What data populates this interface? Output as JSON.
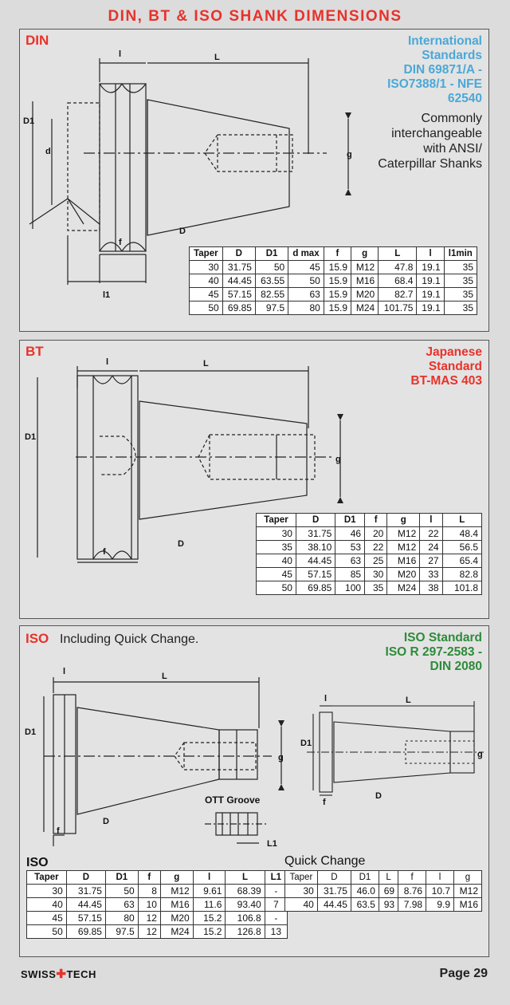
{
  "title": "DIN, BT & ISO SHANK DIMENSIONS",
  "din": {
    "label": "DIN",
    "standard_lines": [
      "International",
      "Standards",
      "DIN 69871/A -",
      "ISO7388/1 - NFE",
      "62540"
    ],
    "note_lines": [
      "Commonly",
      "interchangeable",
      "with ANSI/",
      "Caterpillar Shanks"
    ],
    "drawing_labels": {
      "l": "l",
      "L": "L",
      "D1": "D1",
      "d": "d",
      "g": "g",
      "D": "D",
      "f": "f",
      "l1": "l1"
    },
    "table": {
      "headers": [
        "Taper",
        "D",
        "D1",
        "d max",
        "f",
        "g",
        "L",
        "l",
        "l1min"
      ],
      "rows": [
        [
          "30",
          "31.75",
          "50",
          "45",
          "15.9",
          "M12",
          "47.8",
          "19.1",
          "35"
        ],
        [
          "40",
          "44.45",
          "63.55",
          "50",
          "15.9",
          "M16",
          "68.4",
          "19.1",
          "35"
        ],
        [
          "45",
          "57.15",
          "82.55",
          "63",
          "15.9",
          "M20",
          "82.7",
          "19.1",
          "35"
        ],
        [
          "50",
          "69.85",
          "97.5",
          "80",
          "15.9",
          "M24",
          "101.75",
          "19.1",
          "35"
        ]
      ]
    }
  },
  "bt": {
    "label": "BT",
    "standard_lines": [
      "Japanese",
      "Standard",
      "BT-MAS 403"
    ],
    "drawing_labels": {
      "l": "l",
      "L": "L",
      "D1": "D1",
      "g": "g",
      "D": "D",
      "f": "f"
    },
    "table": {
      "headers": [
        "Taper",
        "D",
        "D1",
        "f",
        "g",
        "l",
        "L"
      ],
      "rows": [
        [
          "30",
          "31.75",
          "46",
          "20",
          "M12",
          "22",
          "48.4"
        ],
        [
          "35",
          "38.10",
          "53",
          "22",
          "M12",
          "24",
          "56.5"
        ],
        [
          "40",
          "44.45",
          "63",
          "25",
          "M16",
          "27",
          "65.4"
        ],
        [
          "45",
          "57.15",
          "85",
          "30",
          "M20",
          "33",
          "82.8"
        ],
        [
          "50",
          "69.85",
          "100",
          "35",
          "M24",
          "38",
          "101.8"
        ]
      ]
    }
  },
  "iso": {
    "label": "ISO",
    "subtitle": "Including Quick Change.",
    "standard_lines": [
      "ISO Standard",
      "ISO R 297-2583 -",
      "DIN 2080"
    ],
    "drawing_labels": {
      "l": "l",
      "L": "L",
      "D1": "D1",
      "g": "g",
      "D": "D",
      "f": "f",
      "ott": "OTT Groove",
      "L1": "L1"
    },
    "table_caption": "ISO",
    "table": {
      "headers": [
        "Taper",
        "D",
        "D1",
        "f",
        "g",
        "l",
        "L",
        "L1"
      ],
      "rows": [
        [
          "30",
          "31.75",
          "50",
          "8",
          "M12",
          "9.61",
          "68.39",
          "-"
        ],
        [
          "40",
          "44.45",
          "63",
          "10",
          "M16",
          "11.6",
          "93.40",
          "7"
        ],
        [
          "45",
          "57.15",
          "80",
          "12",
          "M20",
          "15.2",
          "106.8",
          "-"
        ],
        [
          "50",
          "69.85",
          "97.5",
          "12",
          "M24",
          "15.2",
          "126.8",
          "13"
        ]
      ]
    },
    "qc_caption": "Quick Change",
    "qc_table": {
      "headers": [
        "Taper",
        "D",
        "D1",
        "L",
        "f",
        "l",
        "g"
      ],
      "rows": [
        [
          "30",
          "31.75",
          "46.0",
          "69",
          "8.76",
          "10.7",
          "M12"
        ],
        [
          "40",
          "44.45",
          "63.5",
          "93",
          "7.98",
          "9.9",
          "M16"
        ]
      ]
    }
  },
  "footer": {
    "brand_left": "SWISS",
    "brand_cross": "✚",
    "brand_right": "TECH",
    "page": "Page 29"
  },
  "colors": {
    "red": "#e8322b",
    "blue": "#4aa8d8",
    "green": "#2e8b3a"
  }
}
